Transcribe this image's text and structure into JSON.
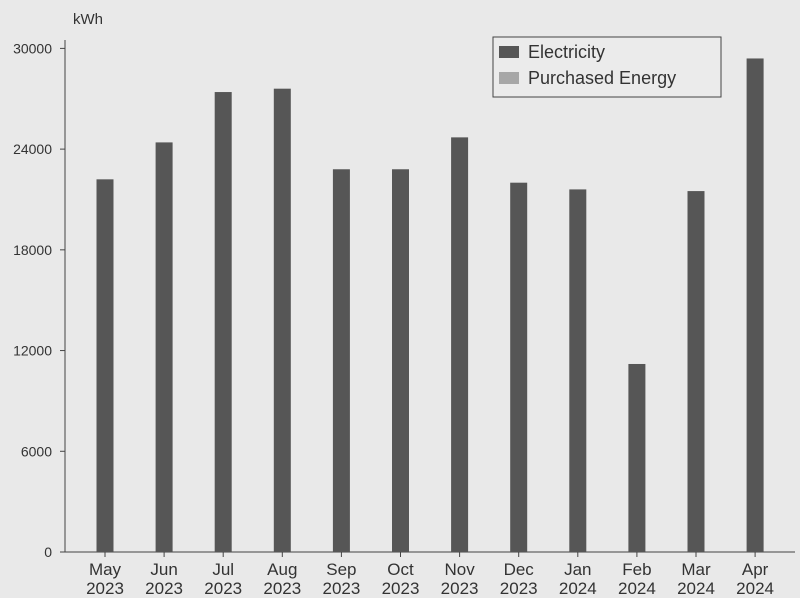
{
  "chart_data": {
    "type": "bar",
    "unit_label": "kWh",
    "categories": [
      [
        "May",
        "2023"
      ],
      [
        "Jun",
        "2023"
      ],
      [
        "Jul",
        "2023"
      ],
      [
        "Aug",
        "2023"
      ],
      [
        "Sep",
        "2023"
      ],
      [
        "Oct",
        "2023"
      ],
      [
        "Nov",
        "2023"
      ],
      [
        "Dec",
        "2023"
      ],
      [
        "Jan",
        "2024"
      ],
      [
        "Feb",
        "2024"
      ],
      [
        "Mar",
        "2024"
      ],
      [
        "Apr",
        "2024"
      ]
    ],
    "series": [
      {
        "name": "Electricity",
        "color": "#565656",
        "values": [
          22200,
          24400,
          27400,
          27600,
          22800,
          22800,
          24700,
          22000,
          21600,
          11200,
          21500,
          29400
        ]
      },
      {
        "name": "Purchased Energy",
        "color": "#a7a7a7",
        "values": [
          0,
          0,
          0,
          0,
          0,
          0,
          0,
          0,
          0,
          0,
          0,
          0
        ]
      }
    ],
    "yticks": [
      0,
      6000,
      12000,
      18000,
      24000,
      30000
    ],
    "ylim": [
      0,
      30500
    ],
    "legend_position": "top-right",
    "grid": false
  }
}
